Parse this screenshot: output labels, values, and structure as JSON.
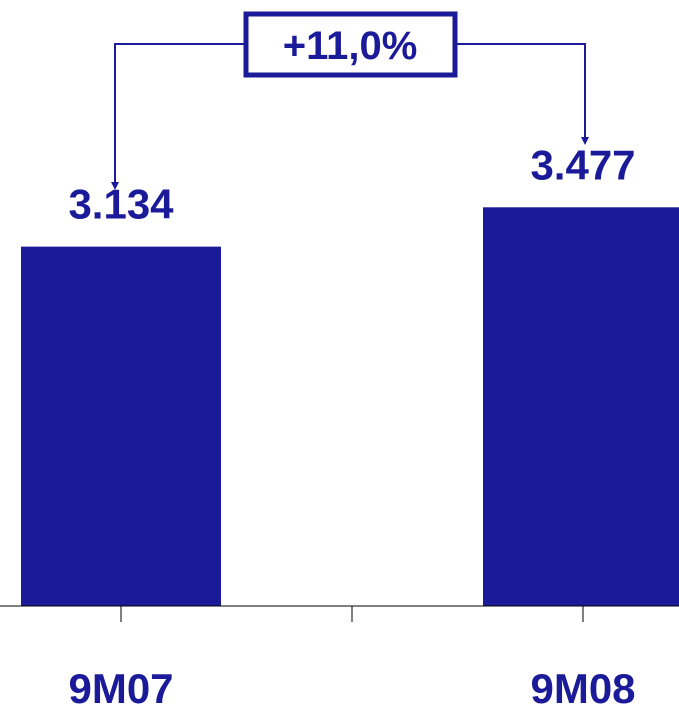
{
  "chart_data": {
    "type": "bar",
    "categories": [
      "9M07",
      "9M08"
    ],
    "values": [
      3134,
      3477
    ],
    "value_labels": [
      "3.134",
      "3.477"
    ],
    "bar_color": "#1b1b99",
    "axis_color": "#000000",
    "ylim": [
      0,
      3750
    ],
    "grid": false,
    "annotation": {
      "text": "+11,0%",
      "from": "9M07",
      "to": "9M08"
    }
  }
}
